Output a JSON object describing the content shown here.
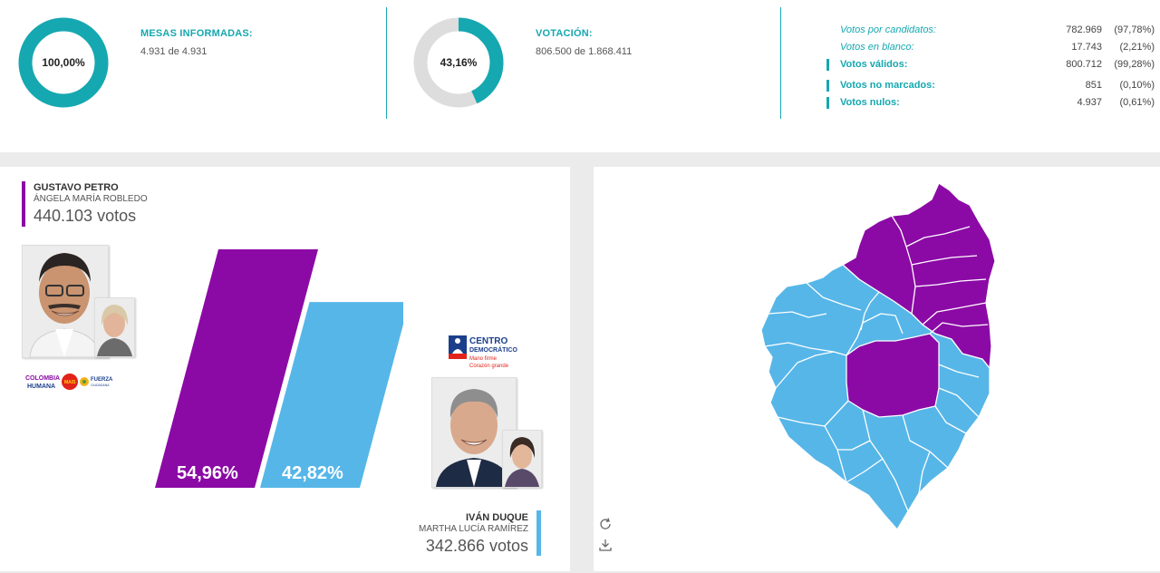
{
  "summary": {
    "mesas": {
      "percent": "100,00%",
      "fraction": 1.0,
      "title": "MESAS INFORMADAS:",
      "detail": "4.931 de 4.931"
    },
    "votacion": {
      "percent": "43,16%",
      "fraction": 0.4316,
      "title": "VOTACIÓN:",
      "detail": "806.500 de 1.868.411"
    },
    "breakdown": [
      {
        "label": "Votos por candidatos:",
        "value": "782.969",
        "pct": "(97,78%)",
        "style": "italic"
      },
      {
        "label": "Votos en blanco:",
        "value": "17.743",
        "pct": "(2,21%)",
        "style": "italic"
      },
      {
        "label": "Votos válidos:",
        "value": "800.712",
        "pct": "(99,28%)",
        "style": "bold"
      },
      {
        "label": "Votos no marcados:",
        "value": "851",
        "pct": "(0,10%)",
        "style": "bold"
      },
      {
        "label": "Votos nulos:",
        "value": "4.937",
        "pct": "(0,61%)",
        "style": "bold"
      }
    ]
  },
  "candidates": [
    {
      "name": "GUSTAVO PETRO",
      "vice": "ÁNGELA MARÍA ROBLEDO",
      "votes": "440.103 votos",
      "percent_label": "54,96%",
      "color": "#8b0aa5"
    },
    {
      "name": "IVÁN DUQUE",
      "vice": "MARTHA LUCÍA RAMÍREZ",
      "votes": "342.866 votos",
      "percent_label": "42,82%",
      "color": "#56b6e8"
    }
  ],
  "logos": {
    "colombia_humana": [
      "COLOMBIA",
      "HUMANA"
    ],
    "mais": "MAIS",
    "fuerza": [
      "FUERZA",
      "CIUDADANA"
    ],
    "centro_democratico": {
      "title1": "CENTRO",
      "title2": "DEMOCRÁTICO",
      "slogan1": "Mano firme",
      "slogan2": "Corazón grande"
    }
  },
  "chart_data": {
    "type": "bar",
    "categories": [
      "GUSTAVO PETRO",
      "IVÁN DUQUE"
    ],
    "values": [
      54.96,
      42.82
    ],
    "labels": [
      "54,96%",
      "42,82%"
    ],
    "colors": [
      "#8b0aa5",
      "#56b6e8"
    ],
    "ylim": [
      0,
      54.96
    ]
  },
  "map": {
    "colors": {
      "petro": "#8b0aa5",
      "duque": "#56b6e8",
      "border": "#ffffff"
    },
    "icons": [
      "refresh-icon",
      "download-icon"
    ]
  },
  "theme": {
    "accent": "#15a8b0",
    "donut_track": "#dddddd"
  }
}
